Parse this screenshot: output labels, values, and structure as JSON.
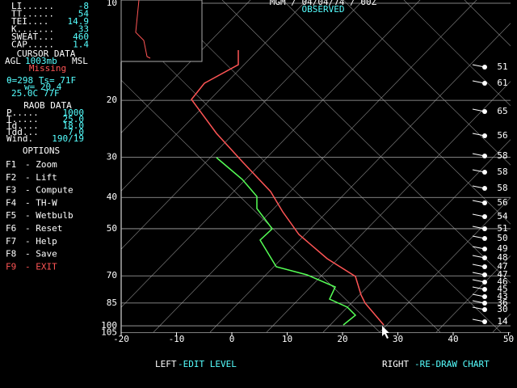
{
  "indices": [
    {
      "label": "LI......",
      "value": "-8"
    },
    {
      "label": "TT......",
      "value": "54"
    },
    {
      "label": "TEI....",
      "value": "14.9"
    },
    {
      "label": "K.......",
      "value": "33"
    },
    {
      "label": "SWEAT...",
      "value": "460"
    },
    {
      "label": "CAP.....",
      "value": "1.4"
    }
  ],
  "cursor": {
    "title": "CURSOR DATA",
    "agl": "AGL",
    "pressure": "1003mb",
    "msl": "MSL",
    "status": "Missing",
    "line1": "θ=298 Ts= 71F",
    "line2": "w= 20.4",
    "line3": "25.0C  77F"
  },
  "raob": {
    "title": "RAOB DATA",
    "rows": [
      {
        "label": "P.....",
        "value": "1000"
      },
      {
        "label": "T.....",
        "value": "25.0"
      },
      {
        "label": "Td....",
        "value": "18.0"
      },
      {
        "label": "Tdd...",
        "value": "7.0"
      },
      {
        "label": "Wind.",
        "value": "190/19"
      }
    ]
  },
  "options": {
    "title": "OPTIONS",
    "items": [
      {
        "key": "F1",
        "label": "- Zoom"
      },
      {
        "key": "F2",
        "label": "- Lift"
      },
      {
        "key": "F3",
        "label": "- Compute"
      },
      {
        "key": "F4",
        "label": "- TH-W"
      },
      {
        "key": "F5",
        "label": "- Wetbulb"
      },
      {
        "key": "F6",
        "label": "- Reset"
      },
      {
        "key": "F7",
        "label": "- Help"
      },
      {
        "key": "F8",
        "label": "- Save"
      },
      {
        "key": "F9",
        "label": "- EXIT"
      }
    ]
  },
  "header": {
    "title": "MGM / 04/04/74 / 00Z",
    "subtitle": "OBSERVED"
  },
  "pressure_levels": [
    10,
    20,
    30,
    40,
    50,
    70,
    85,
    100,
    105
  ],
  "temperature_labels": [
    -20,
    -10,
    0,
    10,
    20,
    30,
    40,
    50
  ],
  "wind_speeds": [
    "51",
    "61",
    "65",
    "56",
    "58",
    "58",
    "58",
    "56",
    "54",
    "51",
    "50",
    "49",
    "48",
    "47",
    "47",
    "46",
    "45",
    "43",
    "36",
    "30",
    "14"
  ],
  "footer": {
    "left_key": "LEFT",
    "left_action": "-EDIT LEVEL",
    "right_key": "RIGHT",
    "right_action": "-RE-DRAW CHART"
  }
}
